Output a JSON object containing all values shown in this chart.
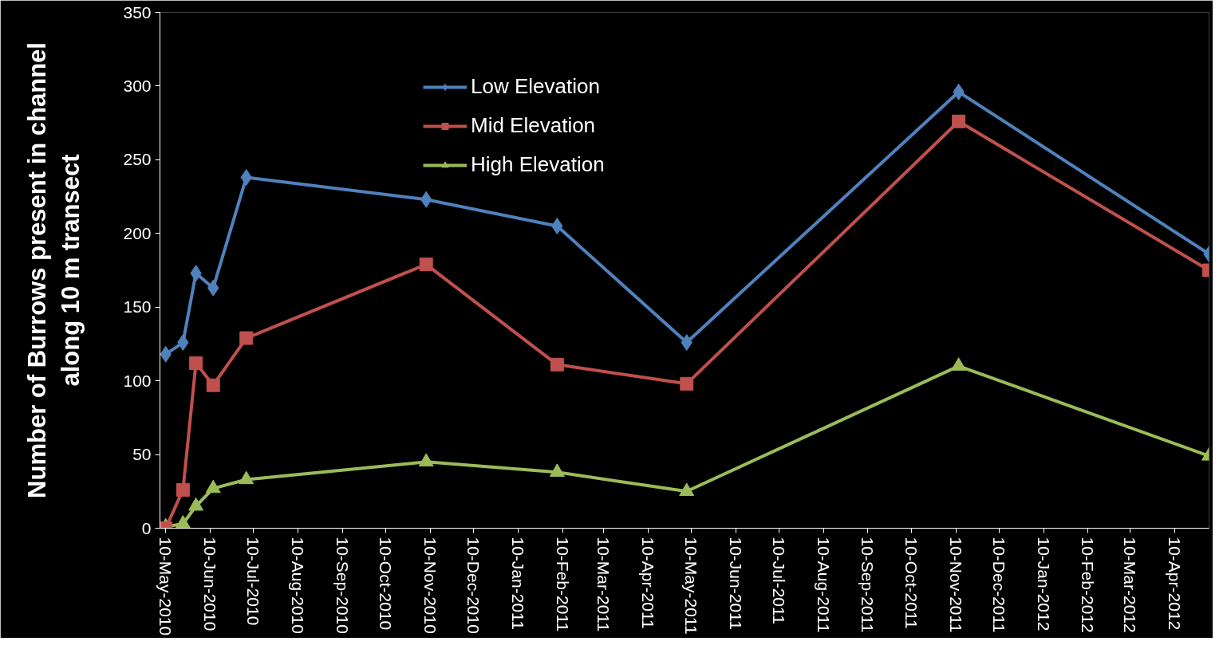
{
  "chart_data": {
    "type": "line",
    "ylabel": "Number of Burrows present in channel\nalong 10 m transect",
    "x": [
      "2010-05-10",
      "2010-05-22",
      "2010-05-31",
      "2010-06-12",
      "2010-07-05",
      "2010-11-07",
      "2011-02-06",
      "2011-05-07",
      "2011-11-12",
      "2012-05-04"
    ],
    "series": [
      {
        "name": "Low Elevation",
        "color": "#4f81bd",
        "marker": "diamond",
        "values": [
          118,
          126,
          173,
          163,
          238,
          223,
          205,
          126,
          296,
          186
        ]
      },
      {
        "name": "Mid Elevation",
        "color": "#c0504d",
        "marker": "square",
        "values": [
          0,
          26,
          112,
          97,
          129,
          179,
          111,
          98,
          276,
          175
        ]
      },
      {
        "name": "High Elevation",
        "color": "#9bbb59",
        "marker": "triangle",
        "values": [
          1,
          3,
          15,
          27,
          33,
          45,
          38,
          25,
          110,
          49
        ]
      }
    ],
    "xlim": [
      "2010-05-06",
      "2012-05-04"
    ],
    "xticks": [
      {
        "value": "2010-05-10",
        "label": "10-May-2010"
      },
      {
        "value": "2010-06-10",
        "label": "10-Jun-2010"
      },
      {
        "value": "2010-07-10",
        "label": "10-Jul-2010"
      },
      {
        "value": "2010-08-10",
        "label": "10-Aug-2010"
      },
      {
        "value": "2010-09-10",
        "label": "10-Sep-2010"
      },
      {
        "value": "2010-10-10",
        "label": "10-Oct-2010"
      },
      {
        "value": "2010-11-10",
        "label": "10-Nov-2010"
      },
      {
        "value": "2010-12-10",
        "label": "10-Dec-2010"
      },
      {
        "value": "2011-01-10",
        "label": "10-Jan-2011"
      },
      {
        "value": "2011-02-10",
        "label": "10-Feb-2011"
      },
      {
        "value": "2011-03-10",
        "label": "10-Mar-2011"
      },
      {
        "value": "2011-04-10",
        "label": "10-Apr-2011"
      },
      {
        "value": "2011-05-10",
        "label": "10-May-2011"
      },
      {
        "value": "2011-06-10",
        "label": "10-Jun-2011"
      },
      {
        "value": "2011-07-10",
        "label": "10-Jul-2011"
      },
      {
        "value": "2011-08-10",
        "label": "10-Aug-2011"
      },
      {
        "value": "2011-09-10",
        "label": "10-Sep-2011"
      },
      {
        "value": "2011-10-10",
        "label": "10-Oct-2011"
      },
      {
        "value": "2011-11-10",
        "label": "10-Nov-2011"
      },
      {
        "value": "2011-12-10",
        "label": "10-Dec-2011"
      },
      {
        "value": "2012-01-10",
        "label": "10-Jan-2012"
      },
      {
        "value": "2012-02-10",
        "label": "10-Feb-2012"
      },
      {
        "value": "2012-03-10",
        "label": "10-Mar-2012"
      },
      {
        "value": "2012-04-10",
        "label": "10-Apr-2012"
      }
    ],
    "ylim": [
      0,
      350
    ],
    "yticks": [
      0,
      50,
      100,
      150,
      200,
      250,
      300,
      350
    ],
    "grid": false,
    "legend": "top left",
    "line_style": "solid"
  }
}
